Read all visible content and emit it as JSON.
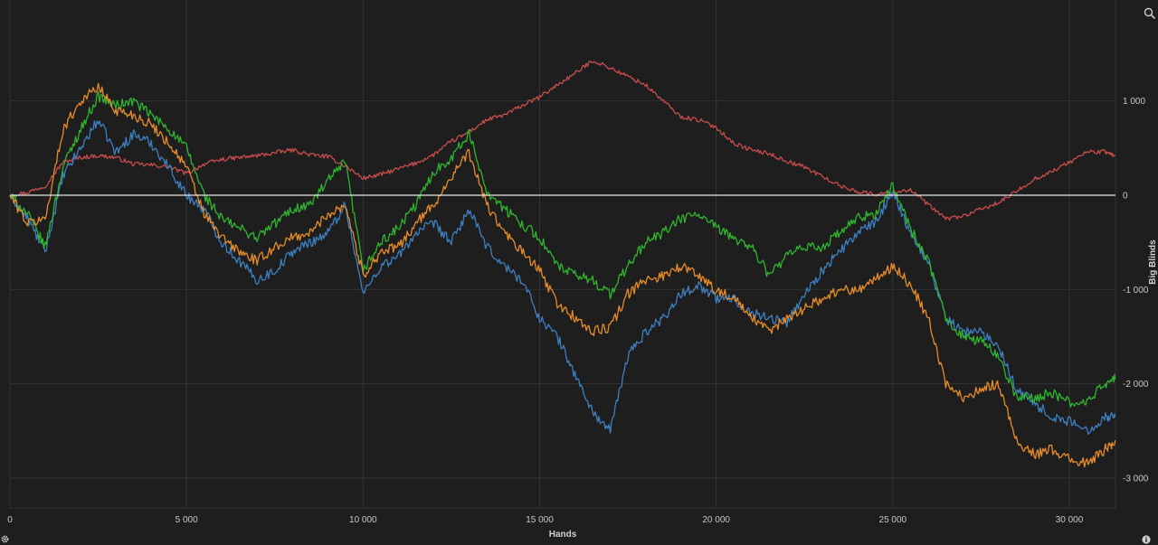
{
  "icons": {
    "zoom": "zoom-icon",
    "settings": "gear-icon",
    "info": "info-icon"
  },
  "colors": {
    "background": "#1e1e1e",
    "grid": "#333333",
    "zero_line": "#e6e6e6"
  },
  "chart_data": {
    "type": "line",
    "xlabel": "Hands",
    "ylabel": "Big Blinds",
    "xlim": [
      0,
      31300
    ],
    "ylim": [
      -3300,
      1850
    ],
    "x_ticks": [
      0,
      5000,
      10000,
      15000,
      20000,
      25000,
      30000
    ],
    "x_tick_labels": [
      "0",
      "5 000",
      "10 000",
      "15 000",
      "20 000",
      "25 000",
      "30 000"
    ],
    "y_ticks": [
      1000,
      0,
      -1000,
      -2000,
      -3000
    ],
    "y_tick_labels": [
      "1 000",
      "0",
      "-1 000",
      "-2 000",
      "-3 000"
    ],
    "grid": true,
    "legend": "none",
    "reference_line": 0,
    "series": [
      {
        "color": "#c94c4c",
        "x": [
          0,
          500,
          1000,
          1500,
          2000,
          2500,
          3000,
          3500,
          4000,
          4500,
          5000,
          5500,
          6000,
          6500,
          7000,
          7500,
          8000,
          8500,
          9000,
          9500,
          10000,
          10500,
          11000,
          11500,
          12000,
          12500,
          13000,
          13500,
          14000,
          14500,
          15000,
          15500,
          16000,
          16500,
          17000,
          17500,
          18000,
          18500,
          19000,
          19500,
          20000,
          20500,
          21000,
          21500,
          22000,
          22500,
          23000,
          23500,
          24000,
          24500,
          25000,
          25500,
          26000,
          26500,
          27000,
          27500,
          28000,
          28500,
          29000,
          29500,
          30000,
          30500,
          31000,
          31300
        ],
        "values": [
          0,
          30,
          100,
          350,
          400,
          420,
          400,
          330,
          320,
          300,
          230,
          330,
          380,
          400,
          420,
          450,
          480,
          430,
          410,
          310,
          180,
          220,
          280,
          340,
          430,
          570,
          670,
          800,
          850,
          950,
          1040,
          1170,
          1290,
          1430,
          1350,
          1260,
          1170,
          1000,
          830,
          800,
          720,
          550,
          480,
          440,
          360,
          300,
          200,
          100,
          40,
          10,
          30,
          60,
          -100,
          -250,
          -220,
          -150,
          -80,
          40,
          170,
          250,
          350,
          460,
          460,
          420
        ]
      },
      {
        "color": "#3d7fc1",
        "x": [
          0,
          500,
          1000,
          1500,
          2000,
          2500,
          3000,
          3500,
          4000,
          4500,
          5000,
          5500,
          6000,
          6500,
          7000,
          7500,
          8000,
          8500,
          9000,
          9500,
          10000,
          10500,
          11000,
          11500,
          12000,
          12500,
          13000,
          13500,
          14000,
          14500,
          15000,
          15500,
          16000,
          16500,
          17000,
          17500,
          18000,
          18500,
          19000,
          19500,
          20000,
          20500,
          21000,
          21500,
          22000,
          22500,
          23000,
          23500,
          24000,
          24500,
          25000,
          25500,
          26000,
          26500,
          27000,
          27500,
          28000,
          28500,
          29000,
          29500,
          30000,
          30500,
          31000,
          31300
        ],
        "values": [
          0,
          -250,
          -600,
          200,
          500,
          800,
          450,
          650,
          550,
          300,
          0,
          -150,
          -500,
          -700,
          -900,
          -800,
          -600,
          -500,
          -400,
          -100,
          -1050,
          -750,
          -650,
          -400,
          -300,
          -500,
          -150,
          -550,
          -750,
          -900,
          -1300,
          -1500,
          -1900,
          -2300,
          -2500,
          -1700,
          -1450,
          -1300,
          -1050,
          -950,
          -1100,
          -1100,
          -1250,
          -1300,
          -1350,
          -1050,
          -800,
          -600,
          -400,
          -300,
          50,
          -400,
          -700,
          -1300,
          -1450,
          -1450,
          -1600,
          -2050,
          -2200,
          -2350,
          -2400,
          -2500,
          -2350,
          -2350
        ]
      },
      {
        "color": "#2fb52f",
        "x": [
          0,
          500,
          1000,
          1500,
          2000,
          2500,
          3000,
          3500,
          4000,
          4500,
          5000,
          5500,
          6000,
          6500,
          7000,
          7500,
          8000,
          8500,
          9000,
          9500,
          10000,
          10500,
          11000,
          11500,
          12000,
          12500,
          13000,
          13500,
          14000,
          14500,
          15000,
          15500,
          16000,
          16500,
          17000,
          17500,
          18000,
          18500,
          19000,
          19500,
          20000,
          20500,
          21000,
          21500,
          22000,
          22500,
          23000,
          23500,
          24000,
          24500,
          25000,
          25500,
          26000,
          26500,
          27000,
          27500,
          28000,
          28500,
          29000,
          29500,
          30000,
          30500,
          31000,
          31300
        ],
        "values": [
          0,
          -200,
          -550,
          300,
          700,
          1050,
          950,
          1000,
          850,
          700,
          500,
          0,
          -250,
          -350,
          -450,
          -300,
          -150,
          -100,
          150,
          350,
          -800,
          -500,
          -350,
          -100,
          250,
          400,
          650,
          50,
          -150,
          -300,
          -450,
          -750,
          -850,
          -900,
          -1050,
          -750,
          -500,
          -400,
          -250,
          -200,
          -350,
          -450,
          -550,
          -850,
          -650,
          -550,
          -550,
          -400,
          -250,
          -200,
          100,
          -350,
          -700,
          -1300,
          -1500,
          -1550,
          -1700,
          -2150,
          -2150,
          -2100,
          -2200,
          -2200,
          -2000,
          -1950
        ]
      },
      {
        "color": "#e68c2a",
        "x": [
          0,
          500,
          1000,
          1500,
          2000,
          2500,
          3000,
          3500,
          4000,
          4500,
          5000,
          5500,
          6000,
          6500,
          7000,
          7500,
          8000,
          8500,
          9000,
          9500,
          10000,
          10500,
          11000,
          11500,
          12000,
          12500,
          13000,
          13500,
          14000,
          14500,
          15000,
          15500,
          16000,
          16500,
          17000,
          17500,
          18000,
          18500,
          19000,
          19500,
          20000,
          20500,
          21000,
          21500,
          22000,
          22500,
          23000,
          23500,
          24000,
          24500,
          25000,
          25500,
          26000,
          26500,
          27000,
          27500,
          28000,
          28500,
          29000,
          29500,
          30000,
          30500,
          31000,
          31300
        ],
        "values": [
          0,
          -300,
          -250,
          700,
          1000,
          1150,
          900,
          850,
          750,
          550,
          300,
          -200,
          -450,
          -600,
          -700,
          -550,
          -450,
          -400,
          -200,
          -100,
          -850,
          -600,
          -550,
          -300,
          -100,
          200,
          450,
          -100,
          -400,
          -600,
          -800,
          -1150,
          -1300,
          -1450,
          -1400,
          -1050,
          -900,
          -850,
          -750,
          -850,
          -1000,
          -1100,
          -1300,
          -1450,
          -1300,
          -1200,
          -1100,
          -1000,
          -1000,
          -900,
          -750,
          -950,
          -1300,
          -2000,
          -2150,
          -2050,
          -2000,
          -2600,
          -2750,
          -2700,
          -2800,
          -2850,
          -2700,
          -2600
        ]
      }
    ]
  }
}
